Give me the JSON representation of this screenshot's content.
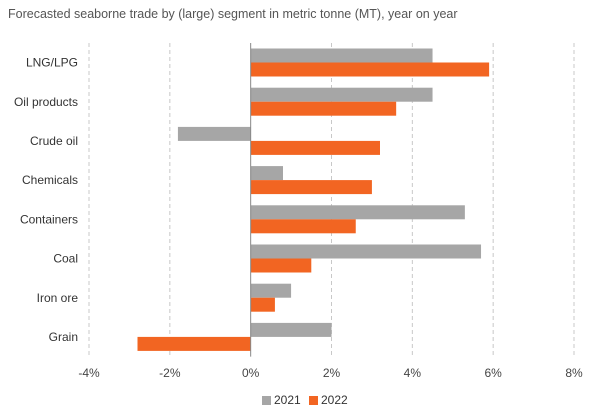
{
  "chart_data": {
    "type": "bar",
    "orientation": "horizontal",
    "title": "Forecasted seaborne trade by (large) segment in metric tonne (MT), year on year",
    "categories": [
      "LNG/LPG",
      "Oil products",
      "Crude oil",
      "Chemicals",
      "Containers",
      "Coal",
      "Iron ore",
      "Grain"
    ],
    "series": [
      {
        "name": "2021",
        "color": "#a6a6a6",
        "values": [
          4.5,
          4.5,
          -1.8,
          0.8,
          5.3,
          5.7,
          1.0,
          2.0
        ]
      },
      {
        "name": "2022",
        "color": "#f26522",
        "values": [
          5.9,
          3.6,
          3.2,
          3.0,
          2.6,
          1.5,
          0.6,
          -2.8
        ]
      }
    ],
    "xlim": [
      -4,
      8
    ],
    "xticks": [
      -4,
      -2,
      0,
      2,
      4,
      6,
      8
    ],
    "xtick_labels": [
      "-4%",
      "-2%",
      "0%",
      "2%",
      "4%",
      "6%",
      "8%"
    ],
    "grid": "vertical-dashed",
    "legend": "bottom-center"
  }
}
